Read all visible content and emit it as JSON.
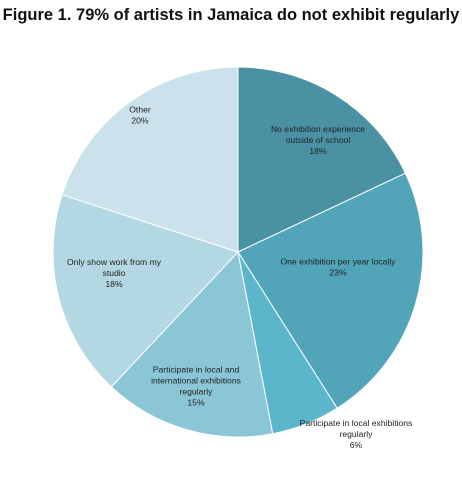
{
  "chart_data": {
    "type": "pie",
    "title": "Figure 1. 79% of artists in Jamaica do not exhibit regularly",
    "slices": [
      {
        "label": [
          "No exhibition experience",
          "outside of school"
        ],
        "percent_label": "18%",
        "value": 18,
        "color": "#4a91a3"
      },
      {
        "label": [
          "One exhibition per year locally"
        ],
        "percent_label": "23%",
        "value": 23,
        "color": "#52a4b8"
      },
      {
        "label": [
          "Participate in local exhibitions",
          "regularly"
        ],
        "percent_label": "6%",
        "value": 6,
        "color": "#5bb6cb"
      },
      {
        "label": [
          "Participate in local and",
          "international exhibitions",
          "regularly"
        ],
        "percent_label": "15%",
        "value": 15,
        "color": "#8bc6d7"
      },
      {
        "label": [
          "Only show  work from my",
          "studio"
        ],
        "percent_label": "18%",
        "value": 18,
        "color": "#b3d7e3"
      },
      {
        "label": [
          "Other"
        ],
        "percent_label": "20%",
        "value": 20,
        "color": "#cbe2ec"
      }
    ],
    "start_angle_deg": 0,
    "direction": "clockwise",
    "legend": "none"
  }
}
